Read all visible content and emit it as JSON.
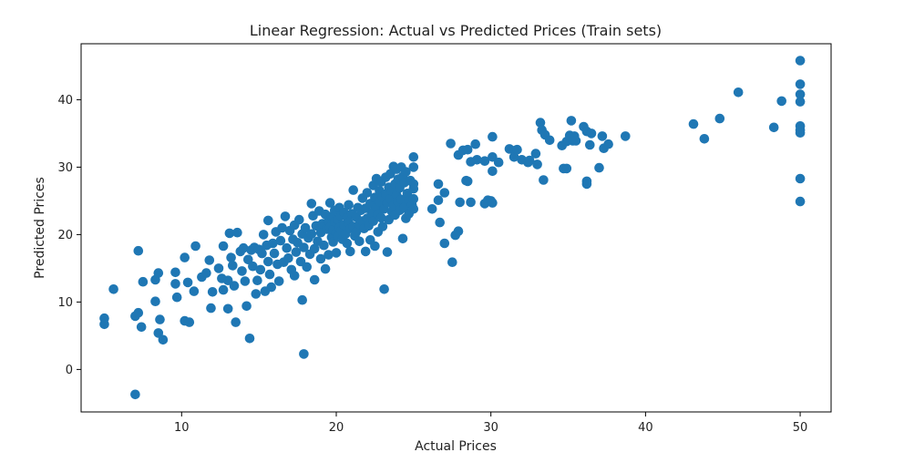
{
  "chart_data": {
    "type": "scatter",
    "title": "Linear Regression: Actual vs Predicted Prices (Train sets)",
    "xlabel": "Actual Prices",
    "ylabel": "Predicted Prices",
    "xlim": [
      3.5,
      52.0
    ],
    "ylim": [
      -6.3,
      48.3
    ],
    "xticks": [
      10,
      20,
      30,
      40,
      50
    ],
    "yticks": [
      0,
      10,
      20,
      30,
      40
    ],
    "grid": false,
    "marker_color": "#1f77b4",
    "points": [
      [
        5.0,
        7.6
      ],
      [
        5.0,
        6.7
      ],
      [
        5.6,
        11.9
      ],
      [
        7.0,
        -3.7
      ],
      [
        7.0,
        7.9
      ],
      [
        7.2,
        8.4
      ],
      [
        7.2,
        17.6
      ],
      [
        7.5,
        13.0
      ],
      [
        7.4,
        6.3
      ],
      [
        8.3,
        10.1
      ],
      [
        8.3,
        13.3
      ],
      [
        8.5,
        14.3
      ],
      [
        8.5,
        5.4
      ],
      [
        8.6,
        7.4
      ],
      [
        8.8,
        4.4
      ],
      [
        9.6,
        14.4
      ],
      [
        9.6,
        12.7
      ],
      [
        9.7,
        10.7
      ],
      [
        10.2,
        16.6
      ],
      [
        10.2,
        7.2
      ],
      [
        10.4,
        12.9
      ],
      [
        10.5,
        7.0
      ],
      [
        10.8,
        11.6
      ],
      [
        10.9,
        18.3
      ],
      [
        11.3,
        13.7
      ],
      [
        11.6,
        14.3
      ],
      [
        11.8,
        16.2
      ],
      [
        11.9,
        9.1
      ],
      [
        12.0,
        11.5
      ],
      [
        12.4,
        15.0
      ],
      [
        12.6,
        13.5
      ],
      [
        12.7,
        11.8
      ],
      [
        12.7,
        18.3
      ],
      [
        13.0,
        9.0
      ],
      [
        13.0,
        13.2
      ],
      [
        13.1,
        20.2
      ],
      [
        13.2,
        16.6
      ],
      [
        13.3,
        15.4
      ],
      [
        13.4,
        12.4
      ],
      [
        13.5,
        7.0
      ],
      [
        13.6,
        20.3
      ],
      [
        13.8,
        17.5
      ],
      [
        13.9,
        14.6
      ],
      [
        14.0,
        18.0
      ],
      [
        14.1,
        13.1
      ],
      [
        14.2,
        9.4
      ],
      [
        14.3,
        16.3
      ],
      [
        14.4,
        4.6
      ],
      [
        14.5,
        17.7
      ],
      [
        14.6,
        15.3
      ],
      [
        14.7,
        18.1
      ],
      [
        14.8,
        11.2
      ],
      [
        14.9,
        13.2
      ],
      [
        15.0,
        17.8
      ],
      [
        15.1,
        14.8
      ],
      [
        15.2,
        17.2
      ],
      [
        15.3,
        20.0
      ],
      [
        15.4,
        11.6
      ],
      [
        15.5,
        18.4
      ],
      [
        15.6,
        16.0
      ],
      [
        15.6,
        22.1
      ],
      [
        15.7,
        14.1
      ],
      [
        15.8,
        12.2
      ],
      [
        15.9,
        18.7
      ],
      [
        16.0,
        17.2
      ],
      [
        16.1,
        20.4
      ],
      [
        16.2,
        15.6
      ],
      [
        16.3,
        13.1
      ],
      [
        16.4,
        19.1
      ],
      [
        16.5,
        21.0
      ],
      [
        16.6,
        15.9
      ],
      [
        16.7,
        22.7
      ],
      [
        16.8,
        18.0
      ],
      [
        16.9,
        16.5
      ],
      [
        17.0,
        20.6
      ],
      [
        17.1,
        14.8
      ],
      [
        17.2,
        19.3
      ],
      [
        17.3,
        21.4
      ],
      [
        17.3,
        13.9
      ],
      [
        17.4,
        17.4
      ],
      [
        17.5,
        18.8
      ],
      [
        17.6,
        22.2
      ],
      [
        17.7,
        16.0
      ],
      [
        17.8,
        20.1
      ],
      [
        17.8,
        10.3
      ],
      [
        17.9,
        2.3
      ],
      [
        17.9,
        18.1
      ],
      [
        18.0,
        21.0
      ],
      [
        18.1,
        15.2
      ],
      [
        18.2,
        19.5
      ],
      [
        18.3,
        17.1
      ],
      [
        18.4,
        24.6
      ],
      [
        18.4,
        20.1
      ],
      [
        18.5,
        22.8
      ],
      [
        18.6,
        13.3
      ],
      [
        18.6,
        17.9
      ],
      [
        18.7,
        21.3
      ],
      [
        18.8,
        19.0
      ],
      [
        18.9,
        23.5
      ],
      [
        19.0,
        16.4
      ],
      [
        19.0,
        20.3
      ],
      [
        19.1,
        21.6
      ],
      [
        19.2,
        18.4
      ],
      [
        19.3,
        23.0
      ],
      [
        19.3,
        14.9
      ],
      [
        19.4,
        20.8
      ],
      [
        19.5,
        22.0
      ],
      [
        19.5,
        17.0
      ],
      [
        19.6,
        21.1
      ],
      [
        19.6,
        24.7
      ],
      [
        19.7,
        19.6
      ],
      [
        19.7,
        22.7
      ],
      [
        19.8,
        20.7
      ],
      [
        19.8,
        18.9
      ],
      [
        19.9,
        21.9
      ],
      [
        19.9,
        23.6
      ],
      [
        20.0,
        20.3
      ],
      [
        20.0,
        17.3
      ],
      [
        20.1,
        22.2
      ],
      [
        20.1,
        19.7
      ],
      [
        20.2,
        21.0
      ],
      [
        20.2,
        24.0
      ],
      [
        20.3,
        20.6
      ],
      [
        20.3,
        22.8
      ],
      [
        20.4,
        19.3
      ],
      [
        20.5,
        21.4
      ],
      [
        20.5,
        23.3
      ],
      [
        20.6,
        20.1
      ],
      [
        20.7,
        22.5
      ],
      [
        20.7,
        18.7
      ],
      [
        20.8,
        21.8
      ],
      [
        20.8,
        24.4
      ],
      [
        20.9,
        20.9
      ],
      [
        20.9,
        17.5
      ],
      [
        21.0,
        23.1
      ],
      [
        21.1,
        21.2
      ],
      [
        21.1,
        26.6
      ],
      [
        21.2,
        19.8
      ],
      [
        21.3,
        22.6
      ],
      [
        21.3,
        20.4
      ],
      [
        21.4,
        24.0
      ],
      [
        21.5,
        21.5
      ],
      [
        21.5,
        19.0
      ],
      [
        21.6,
        23.6
      ],
      [
        21.7,
        22.0
      ],
      [
        21.7,
        25.4
      ],
      [
        21.8,
        20.9
      ],
      [
        21.9,
        23.9
      ],
      [
        21.9,
        17.5
      ],
      [
        22.0,
        22.4
      ],
      [
        22.0,
        26.2
      ],
      [
        22.1,
        21.3
      ],
      [
        22.2,
        24.6
      ],
      [
        22.2,
        19.2
      ],
      [
        22.3,
        23.2
      ],
      [
        22.4,
        27.3
      ],
      [
        22.4,
        22.0
      ],
      [
        22.5,
        25.5
      ],
      [
        22.5,
        18.3
      ],
      [
        22.6,
        24.1
      ],
      [
        22.6,
        28.3
      ],
      [
        22.7,
        23.0
      ],
      [
        22.7,
        20.4
      ],
      [
        22.8,
        26.5
      ],
      [
        22.8,
        24.9
      ],
      [
        22.9,
        22.5
      ],
      [
        22.9,
        27.8
      ],
      [
        23.0,
        25.6
      ],
      [
        23.0,
        21.2
      ],
      [
        23.1,
        23.8
      ],
      [
        23.1,
        11.9
      ],
      [
        23.2,
        28.5
      ],
      [
        23.2,
        26.0
      ],
      [
        23.3,
        17.4
      ],
      [
        23.3,
        24.7
      ],
      [
        23.4,
        22.2
      ],
      [
        23.4,
        27.0
      ],
      [
        23.5,
        25.3
      ],
      [
        23.5,
        29.0
      ],
      [
        23.6,
        23.4
      ],
      [
        23.6,
        26.5
      ],
      [
        23.7,
        30.1
      ],
      [
        23.7,
        24.3
      ],
      [
        23.8,
        27.5
      ],
      [
        23.8,
        22.9
      ],
      [
        23.9,
        25.9
      ],
      [
        23.9,
        29.7
      ],
      [
        24.0,
        24.8
      ],
      [
        24.0,
        28.2
      ],
      [
        24.1,
        23.6
      ],
      [
        24.1,
        26.9
      ],
      [
        24.2,
        25.2
      ],
      [
        24.2,
        30.0
      ],
      [
        24.3,
        28.6
      ],
      [
        24.3,
        19.4
      ],
      [
        24.4,
        24.0
      ],
      [
        24.4,
        27.7
      ],
      [
        24.5,
        22.4
      ],
      [
        24.5,
        29.3
      ],
      [
        24.6,
        26.1
      ],
      [
        24.7,
        25.0
      ],
      [
        24.7,
        23.1
      ],
      [
        24.8,
        28.0
      ],
      [
        24.9,
        24.4
      ],
      [
        25.0,
        26.8
      ],
      [
        25.0,
        30.0
      ],
      [
        25.0,
        31.5
      ],
      [
        25.0,
        23.8
      ],
      [
        25.0,
        27.5
      ],
      [
        25.0,
        25.3
      ],
      [
        26.2,
        23.8
      ],
      [
        26.6,
        25.1
      ],
      [
        26.6,
        27.5
      ],
      [
        26.7,
        21.8
      ],
      [
        27.0,
        18.7
      ],
      [
        27.0,
        26.2
      ],
      [
        27.4,
        33.5
      ],
      [
        27.5,
        15.9
      ],
      [
        27.7,
        19.9
      ],
      [
        27.9,
        20.5
      ],
      [
        27.9,
        31.8
      ],
      [
        28.0,
        24.8
      ],
      [
        28.2,
        32.5
      ],
      [
        28.4,
        28.0
      ],
      [
        28.5,
        27.9
      ],
      [
        28.5,
        32.6
      ],
      [
        28.7,
        24.8
      ],
      [
        28.7,
        30.8
      ],
      [
        29.0,
        33.4
      ],
      [
        29.1,
        31.1
      ],
      [
        29.6,
        30.9
      ],
      [
        29.6,
        24.6
      ],
      [
        29.8,
        25.1
      ],
      [
        30.0,
        25.0
      ],
      [
        30.1,
        24.7
      ],
      [
        30.1,
        29.4
      ],
      [
        30.1,
        31.5
      ],
      [
        30.1,
        34.5
      ],
      [
        30.5,
        30.7
      ],
      [
        31.2,
        32.7
      ],
      [
        31.5,
        31.5
      ],
      [
        31.6,
        32.5
      ],
      [
        31.7,
        32.6
      ],
      [
        32.0,
        31.1
      ],
      [
        32.4,
        30.7
      ],
      [
        32.5,
        31.0
      ],
      [
        32.9,
        32.0
      ],
      [
        33.0,
        30.4
      ],
      [
        33.2,
        36.6
      ],
      [
        33.3,
        35.5
      ],
      [
        33.4,
        28.1
      ],
      [
        33.5,
        34.8
      ],
      [
        33.8,
        34.0
      ],
      [
        34.6,
        33.2
      ],
      [
        34.7,
        29.8
      ],
      [
        34.9,
        33.8
      ],
      [
        34.9,
        29.8
      ],
      [
        35.1,
        34.7
      ],
      [
        35.2,
        36.9
      ],
      [
        35.3,
        33.9
      ],
      [
        35.4,
        34.6
      ],
      [
        35.5,
        33.9
      ],
      [
        36.0,
        36.0
      ],
      [
        36.2,
        35.3
      ],
      [
        36.2,
        27.9
      ],
      [
        36.2,
        27.5
      ],
      [
        36.4,
        33.3
      ],
      [
        36.5,
        35.0
      ],
      [
        37.0,
        29.9
      ],
      [
        37.2,
        34.6
      ],
      [
        37.3,
        32.8
      ],
      [
        37.6,
        33.4
      ],
      [
        38.7,
        34.6
      ],
      [
        43.1,
        36.4
      ],
      [
        43.8,
        34.2
      ],
      [
        44.8,
        37.2
      ],
      [
        46.0,
        41.1
      ],
      [
        48.3,
        35.9
      ],
      [
        48.8,
        39.8
      ],
      [
        50.0,
        45.8
      ],
      [
        50.0,
        42.3
      ],
      [
        50.0,
        40.8
      ],
      [
        50.0,
        39.7
      ],
      [
        50.0,
        36.1
      ],
      [
        50.0,
        35.5
      ],
      [
        50.0,
        35.1
      ],
      [
        50.0,
        28.3
      ],
      [
        50.0,
        24.9
      ]
    ]
  }
}
